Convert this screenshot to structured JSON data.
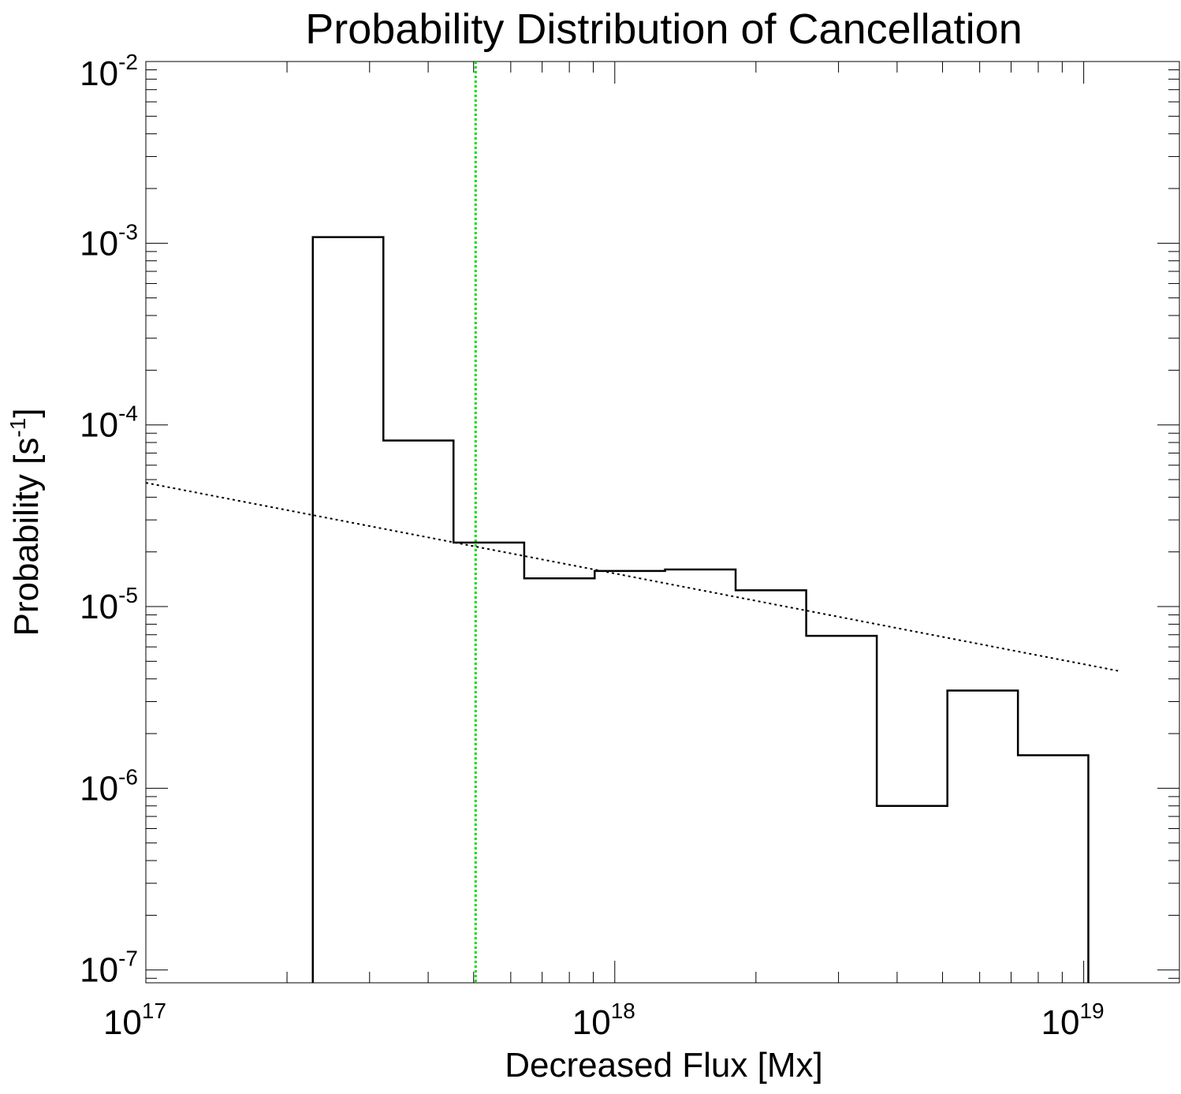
{
  "chart_data": {
    "type": "step-histogram",
    "title": "Probability Distribution of Cancellation",
    "xlabel": "Decreased Flux [Mx]",
    "ylabel": {
      "base": "Probability [s",
      "sup": "-1",
      "tail": "]"
    },
    "x_scale": "log",
    "y_scale": "log",
    "xlim": [
      1e+17,
      1.6e+19
    ],
    "ylim": [
      8.5e-08,
      0.01
    ],
    "x_ticks": [
      {
        "value": 1e+17,
        "base": "10",
        "exp": "17"
      },
      {
        "value": 1e+18,
        "base": "10",
        "exp": "18"
      },
      {
        "value": 1e+19,
        "base": "10",
        "exp": "19"
      }
    ],
    "y_ticks": [
      {
        "value": 0.01,
        "base": "10",
        "exp": "-2"
      },
      {
        "value": 0.001,
        "base": "10",
        "exp": "-3"
      },
      {
        "value": 0.0001,
        "base": "10",
        "exp": "-4"
      },
      {
        "value": 1e-05,
        "base": "10",
        "exp": "-5"
      },
      {
        "value": 1e-06,
        "base": "10",
        "exp": "-6"
      },
      {
        "value": 1e-07,
        "base": "10",
        "exp": "-7"
      }
    ],
    "histogram": {
      "bin_edges": [
        2.27e+17,
        3.21e+17,
        4.53e+17,
        6.41e+17,
        9.06e+17,
        1.28e+18,
        1.81e+18,
        2.56e+18,
        3.62e+18,
        5.12e+18,
        7.24e+18,
        1.023e+19
      ],
      "values": [
        0.00108,
        8.2e-05,
        2.25e-05,
        1.43e-05,
        1.57e-05,
        1.6e-05,
        1.23e-05,
        6.9e-06,
        8e-07,
        3.45e-06,
        1.52e-06
      ],
      "color": "#000000"
    },
    "fit_line": {
      "x": [
        1e+17,
        1.2e+19
      ],
      "y": [
        4.8e-05,
        4.4e-06
      ],
      "style": "dotted",
      "color": "#000000"
    },
    "threshold_line": {
      "x": 5.05e+17,
      "style": "dotted",
      "color": "#00dd00"
    },
    "grid": false
  }
}
